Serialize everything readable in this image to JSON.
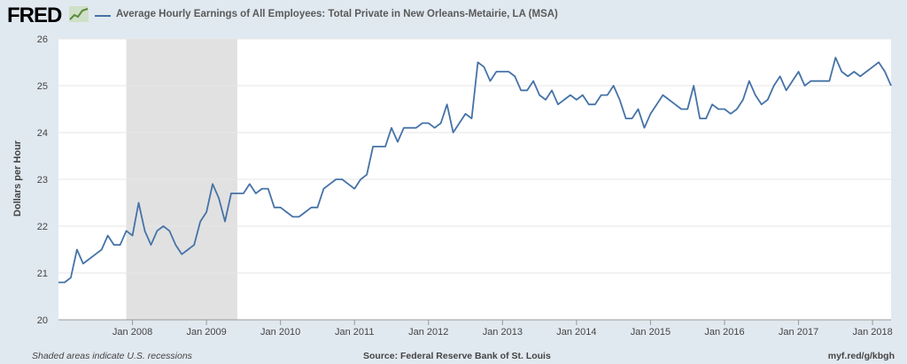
{
  "header": {
    "logo_text": "FRED",
    "logo_icon": "line-chart-icon"
  },
  "footer": {
    "recessions_note": "Shaded areas indicate U.S. recessions",
    "source": "Source: Federal Reserve Bank of St. Louis",
    "short_url": "myf.red/g/kbgh"
  },
  "colors": {
    "series": "#4572a7",
    "recession": "#e1e1e1",
    "page_bg": "#e1e9f0",
    "plot_bg": "#ffffff",
    "grid": "#e6e6e6"
  },
  "chart_data": {
    "type": "line",
    "title": "Average Hourly Earnings of All Employees: Total Private in New Orleans-Metairie, LA (MSA)",
    "xlabel": "",
    "ylabel": "Dollars per Hour",
    "ylim": [
      20,
      26
    ],
    "yticks": [
      20,
      21,
      22,
      23,
      24,
      25,
      26
    ],
    "xlim": [
      "2007-01",
      "2018-04"
    ],
    "xticks": [
      {
        "date": "2008-01",
        "label": "Jan 2008"
      },
      {
        "date": "2009-01",
        "label": "Jan 2009"
      },
      {
        "date": "2010-01",
        "label": "Jan 2010"
      },
      {
        "date": "2011-01",
        "label": "Jan 2011"
      },
      {
        "date": "2012-01",
        "label": "Jan 2012"
      },
      {
        "date": "2013-01",
        "label": "Jan 2013"
      },
      {
        "date": "2014-01",
        "label": "Jan 2014"
      },
      {
        "date": "2015-01",
        "label": "Jan 2015"
      },
      {
        "date": "2016-01",
        "label": "Jan 2016"
      },
      {
        "date": "2017-01",
        "label": "Jan 2017"
      },
      {
        "date": "2018-01",
        "label": "Jan 2018"
      }
    ],
    "grid": "horizontal",
    "legend": "top-left",
    "recessions": [
      {
        "start": "2007-12",
        "end": "2009-06"
      }
    ],
    "series": [
      {
        "name": "Average Hourly Earnings of All Employees: Total Private in New Orleans-Metairie, LA (MSA)",
        "start": "2007-01",
        "frequency": "monthly",
        "values": [
          20.8,
          20.8,
          20.9,
          21.5,
          21.2,
          21.3,
          21.4,
          21.5,
          21.8,
          21.6,
          21.6,
          21.9,
          21.8,
          22.5,
          21.9,
          21.6,
          21.9,
          22.0,
          21.9,
          21.6,
          21.4,
          21.5,
          21.6,
          22.1,
          22.3,
          22.9,
          22.6,
          22.1,
          22.7,
          22.7,
          22.7,
          22.9,
          22.7,
          22.8,
          22.8,
          22.4,
          22.4,
          22.3,
          22.2,
          22.2,
          22.3,
          22.4,
          22.4,
          22.8,
          22.9,
          23.0,
          23.0,
          22.9,
          22.8,
          23.0,
          23.1,
          23.7,
          23.7,
          23.7,
          24.1,
          23.8,
          24.1,
          24.1,
          24.1,
          24.2,
          24.2,
          24.1,
          24.2,
          24.6,
          24.0,
          24.2,
          24.4,
          24.3,
          25.5,
          25.4,
          25.1,
          25.3,
          25.3,
          25.3,
          25.2,
          24.9,
          24.9,
          25.1,
          24.8,
          24.7,
          24.9,
          24.6,
          24.7,
          24.8,
          24.7,
          24.8,
          24.6,
          24.6,
          24.8,
          24.8,
          25.0,
          24.7,
          24.3,
          24.3,
          24.5,
          24.1,
          24.4,
          24.6,
          24.8,
          24.7,
          24.6,
          24.5,
          24.5,
          25.0,
          24.3,
          24.3,
          24.6,
          24.5,
          24.5,
          24.4,
          24.5,
          24.7,
          25.1,
          24.8,
          24.6,
          24.7,
          25.0,
          25.2,
          24.9,
          25.1,
          25.3,
          25.0,
          25.1,
          25.1,
          25.1,
          25.1,
          25.6,
          25.3,
          25.2,
          25.3,
          25.2,
          25.3,
          25.4,
          25.5,
          25.3,
          25.0
        ]
      }
    ]
  }
}
